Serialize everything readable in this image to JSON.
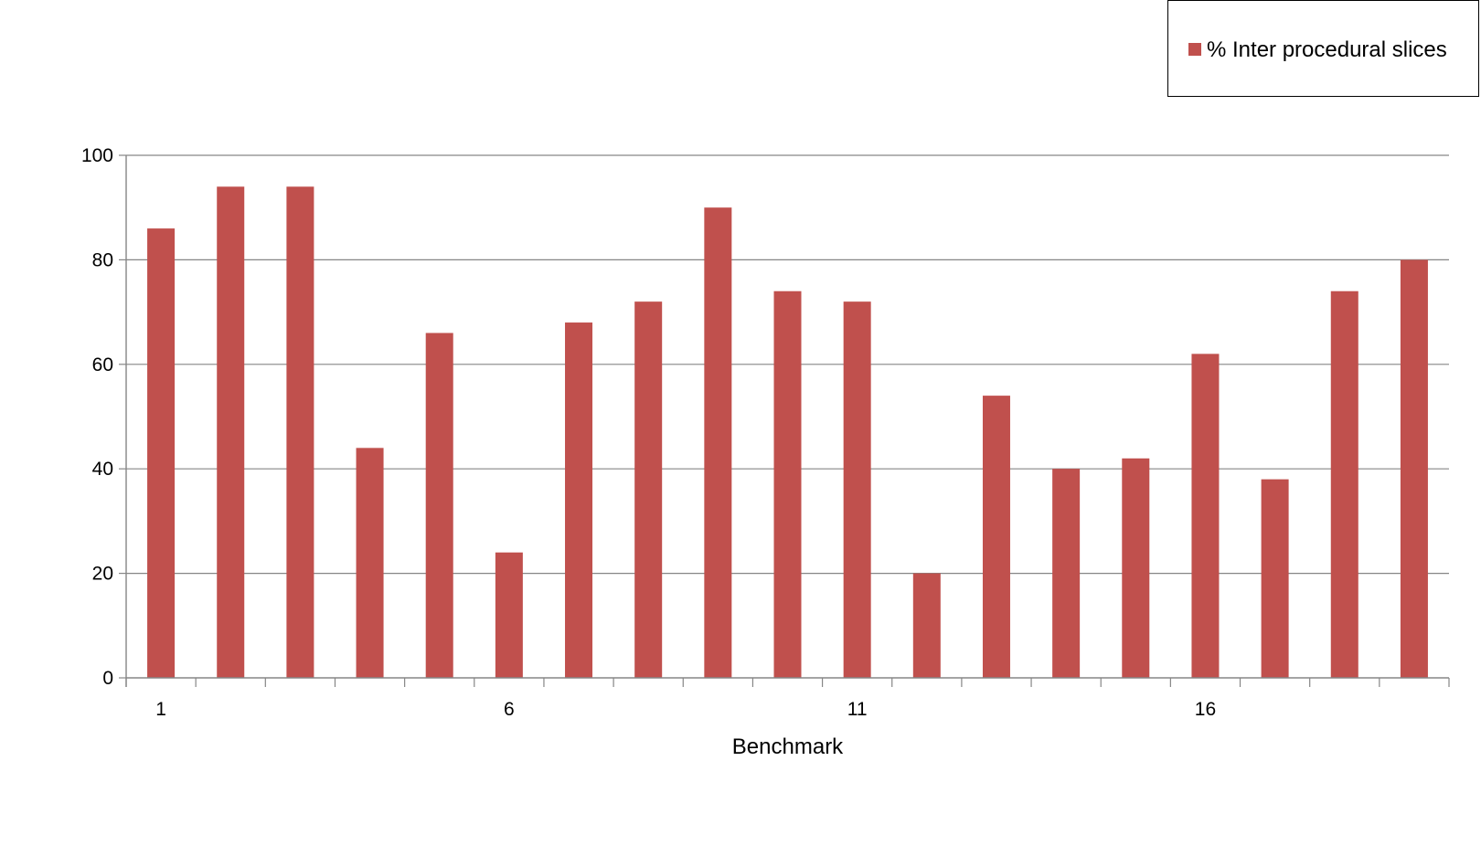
{
  "chart_data": {
    "type": "bar",
    "categories": [
      "1",
      "2",
      "3",
      "4",
      "5",
      "6",
      "7",
      "8",
      "9",
      "10",
      "11",
      "12",
      "13",
      "14",
      "15",
      "16",
      "17",
      "18",
      "19"
    ],
    "x_tick_labels": [
      "1",
      "6",
      "11",
      "16"
    ],
    "series": [
      {
        "name": "% Inter procedural slices",
        "values": [
          86,
          94,
          94,
          44,
          66,
          24,
          68,
          72,
          90,
          74,
          72,
          20,
          54,
          40,
          42,
          62,
          38,
          74,
          80
        ]
      }
    ],
    "xlabel": "Benchmark",
    "ylabel": "",
    "ylim": [
      0,
      100
    ],
    "yticks": [
      "0",
      "20",
      "40",
      "60",
      "80",
      "100"
    ],
    "grid": true,
    "legend_position": "top-right",
    "colors": {
      "bar": "#c0504d",
      "grid": "#868686",
      "axis": "#868686"
    }
  }
}
